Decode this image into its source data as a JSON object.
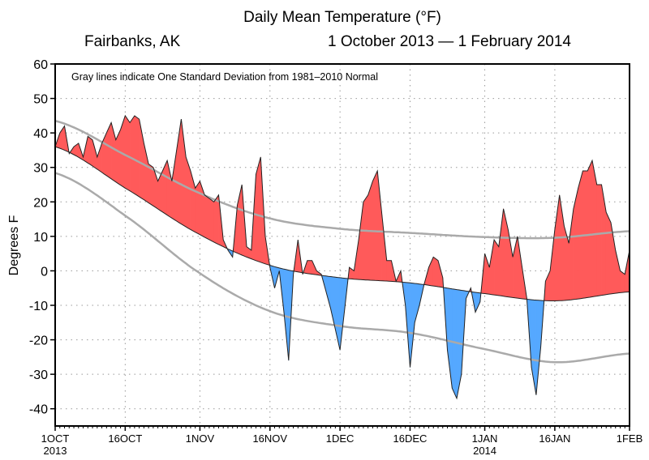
{
  "chart_data": {
    "type": "area",
    "title": "Daily Mean Temperature (°F)",
    "subtitle_location": "Fairbanks, AK",
    "subtitle_dates": "1 October 2013 — 1 February 2014",
    "annotation": "Gray lines indicate One Standard Deviation from 1981–2010 Normal",
    "ylabel": "Degrees F",
    "xlabel": "",
    "ylim": [
      -45,
      60
    ],
    "yticks": [
      -40,
      -30,
      -20,
      -10,
      0,
      10,
      20,
      30,
      40,
      50,
      60
    ],
    "xlim": [
      "2013-10-01",
      "2014-02-01"
    ],
    "xticks": [
      {
        "date": "2013-10-01",
        "label": "1OCT",
        "label2": "2013"
      },
      {
        "date": "2013-10-16",
        "label": "16OCT",
        "label2": ""
      },
      {
        "date": "2013-11-01",
        "label": "1NOV",
        "label2": ""
      },
      {
        "date": "2013-11-16",
        "label": "16NOV",
        "label2": ""
      },
      {
        "date": "2013-12-01",
        "label": "1DEC",
        "label2": ""
      },
      {
        "date": "2013-12-16",
        "label": "16DEC",
        "label2": ""
      },
      {
        "date": "2014-01-01",
        "label": "1JAN",
        "label2": "2014"
      },
      {
        "date": "2014-01-16",
        "label": "16JAN",
        "label2": ""
      },
      {
        "date": "2014-02-01",
        "label": "1FEB",
        "label2": ""
      }
    ],
    "grid": true,
    "start_date": "2013-10-01",
    "observed": [
      36,
      40,
      42,
      34,
      36,
      37,
      33,
      39,
      38,
      33,
      37,
      40,
      43,
      38,
      41,
      45,
      43,
      45,
      44,
      37,
      31,
      30,
      26,
      29,
      32,
      26,
      35,
      44,
      33,
      29,
      24,
      26,
      22,
      21,
      20,
      22,
      9,
      6,
      4,
      19,
      25,
      7,
      6,
      28,
      33,
      10,
      1,
      -5,
      0,
      -12,
      -26,
      -1,
      9,
      -1,
      3,
      3,
      0,
      -1,
      -6,
      -11,
      -17,
      -23,
      -11,
      1,
      0,
      9,
      20,
      22,
      26,
      29,
      16,
      3,
      3,
      -3,
      0,
      -10,
      -28,
      -15,
      -10,
      -4,
      1,
      4,
      3,
      -2,
      -23,
      -34,
      -37,
      -30,
      -8,
      -5,
      -12,
      -9,
      5,
      1,
      9,
      7,
      18,
      12,
      4,
      10,
      1,
      -8,
      -28,
      -36,
      -22,
      -3,
      0,
      12,
      22,
      13,
      8,
      18,
      24,
      29,
      29,
      32,
      25,
      25,
      17,
      14,
      6,
      0,
      -1,
      6
    ],
    "normal": {
      "dates": [
        "2013-10-01",
        "2013-10-16",
        "2013-11-01",
        "2013-11-16",
        "2013-12-01",
        "2013-12-16",
        "2014-01-01",
        "2014-01-16",
        "2014-02-01"
      ],
      "values": [
        36,
        24,
        10.5,
        1.6,
        -2,
        -3.5,
        -6.6,
        -8.7,
        -6.1
      ]
    },
    "upper_std": {
      "dates": [
        "2013-10-01",
        "2013-10-16",
        "2013-11-01",
        "2013-11-16",
        "2013-12-01",
        "2013-12-16",
        "2014-01-01",
        "2014-01-16",
        "2014-02-01"
      ],
      "values": [
        43.5,
        33.6,
        22.5,
        15.2,
        12.2,
        11,
        9.8,
        9.6,
        11.5
      ]
    },
    "lower_std": {
      "dates": [
        "2013-10-01",
        "2013-10-16",
        "2013-11-01",
        "2013-11-16",
        "2013-12-01",
        "2013-12-16",
        "2014-01-01",
        "2014-01-16",
        "2014-02-01"
      ],
      "values": [
        28.4,
        16,
        -0.7,
        -11.7,
        -16,
        -18,
        -22.7,
        -26.5,
        -24
      ]
    },
    "colors": {
      "above": "#ff5a5a",
      "below": "#55a8ff",
      "std_lines": "#aaaaaa",
      "outline": "#222222"
    }
  }
}
